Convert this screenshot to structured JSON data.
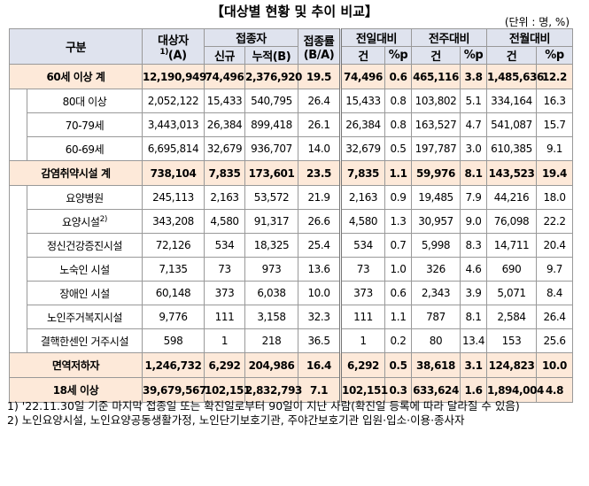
{
  "title": "【대상별 현황 및 추이 비교】",
  "unit": "(단위 : 명, %)",
  "table": {
    "header": {
      "category": "구분",
      "target": "대상자",
      "target_note": "1)",
      "target_sub": "(A)",
      "vaccinated": "접종자",
      "vaccinated_sub": [
        "신규",
        "누적(B)"
      ],
      "rate": "접종률",
      "rate_sub": "(B/A)",
      "compare": [
        "전일대비",
        "전주대비",
        "전월대비"
      ],
      "compare_sub": [
        "건",
        "%p"
      ]
    },
    "sections": [
      {
        "label": "60세 이상 계",
        "cells": [
          "12,190,949",
          "74,496",
          "2,376,920",
          "19.5",
          "74,496",
          "0.6",
          "465,116",
          "3.8",
          "1,485,636",
          "12.2"
        ],
        "children": [
          {
            "label": "80대 이상",
            "cells": [
              "2,052,122",
              "15,433",
              "540,795",
              "26.4",
              "15,433",
              "0.8",
              "103,802",
              "5.1",
              "334,164",
              "16.3"
            ]
          },
          {
            "label": "70-79세",
            "cells": [
              "3,443,013",
              "26,384",
              "899,418",
              "26.1",
              "26,384",
              "0.8",
              "163,527",
              "4.7",
              "541,087",
              "15.7"
            ]
          },
          {
            "label": "60-69세",
            "cells": [
              "6,695,814",
              "32,679",
              "936,707",
              "14.0",
              "32,679",
              "0.5",
              "197,787",
              "3.0",
              "610,385",
              "9.1"
            ]
          }
        ]
      },
      {
        "label": "감염취약시설 계",
        "cells": [
          "738,104",
          "7,835",
          "173,601",
          "23.5",
          "7,835",
          "1.1",
          "59,976",
          "8.1",
          "143,523",
          "19.4"
        ],
        "children": [
          {
            "label": "요양병원",
            "cells": [
              "245,113",
              "2,163",
              "53,572",
              "21.9",
              "2,163",
              "0.9",
              "19,485",
              "7.9",
              "44,216",
              "18.0"
            ]
          },
          {
            "label": "요양시설",
            "note": "2)",
            "cells": [
              "343,208",
              "4,580",
              "91,317",
              "26.6",
              "4,580",
              "1.3",
              "30,957",
              "9.0",
              "76,098",
              "22.2"
            ]
          },
          {
            "label": "정신건강증진시설",
            "cells": [
              "72,126",
              "534",
              "18,325",
              "25.4",
              "534",
              "0.7",
              "5,998",
              "8.3",
              "14,711",
              "20.4"
            ]
          },
          {
            "label": "노숙인 시설",
            "cells": [
              "7,135",
              "73",
              "973",
              "13.6",
              "73",
              "1.0",
              "326",
              "4.6",
              "690",
              "9.7"
            ]
          },
          {
            "label": "장애인 시설",
            "cells": [
              "60,148",
              "373",
              "6,038",
              "10.0",
              "373",
              "0.6",
              "2,343",
              "3.9",
              "5,071",
              "8.4"
            ]
          },
          {
            "label": "노인주거복지시설",
            "cells": [
              "9,776",
              "111",
              "3,158",
              "32.3",
              "111",
              "1.1",
              "787",
              "8.1",
              "2,584",
              "26.4"
            ]
          },
          {
            "label": "결핵한센인 거주시설",
            "cells": [
              "598",
              "1",
              "218",
              "36.5",
              "1",
              "0.2",
              "80",
              "13.4",
              "153",
              "25.6"
            ]
          }
        ]
      },
      {
        "label": "면역저하자",
        "cells": [
          "1,246,732",
          "6,292",
          "204,986",
          "16.4",
          "6,292",
          "0.5",
          "38,618",
          "3.1",
          "124,823",
          "10.0"
        ]
      },
      {
        "label": "18세 이상",
        "cells": [
          "39,679,567",
          "102,151",
          "2,832,793",
          "7.1",
          "102,151",
          "0.3",
          "633,624",
          "1.6",
          "1,894,004",
          "4.8"
        ]
      }
    ]
  },
  "notes": [
    "1) '22.11.30일 기준 마지막 접종일 또는 확진일로부터 90일이 지난 사람(확진일 등록에 따라 달라질 수 있음)",
    "2) 노인요양시설, 노인요양공동생활가정, 노인단기보호기관, 주야간보호기관 입원·입소·이용·종사자"
  ]
}
